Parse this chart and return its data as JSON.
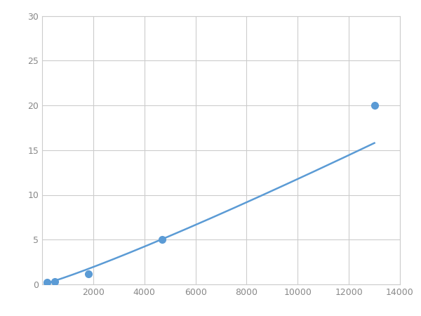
{
  "x_data": [
    200,
    500,
    1800,
    4700,
    13000
  ],
  "y_data": [
    0.2,
    0.35,
    1.2,
    5.0,
    20.0
  ],
  "line_color": "#5b9bd5",
  "marker_color": "#5b9bd5",
  "marker_size": 7,
  "line_width": 1.8,
  "xlim": [
    0,
    14000
  ],
  "ylim": [
    0,
    30
  ],
  "xticks": [
    2000,
    4000,
    6000,
    8000,
    10000,
    12000,
    14000
  ],
  "yticks": [
    0,
    5,
    10,
    15,
    20,
    25,
    30
  ],
  "grid_color": "#cccccc",
  "background_color": "#ffffff",
  "spine_color": "#cccccc",
  "tick_color": "#888888"
}
